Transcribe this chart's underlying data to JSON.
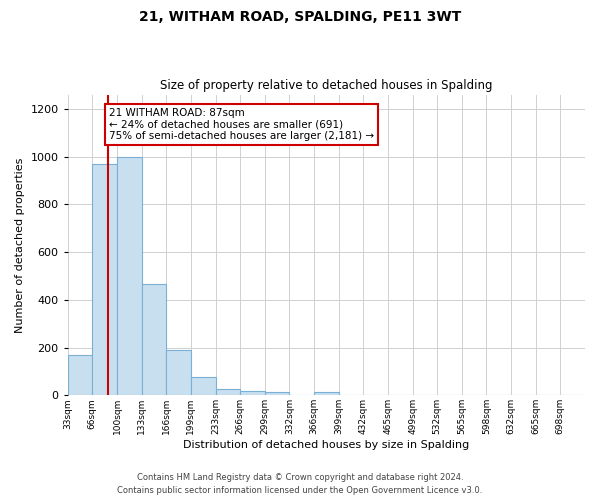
{
  "title": "21, WITHAM ROAD, SPALDING, PE11 3WT",
  "subtitle": "Size of property relative to detached houses in Spalding",
  "xlabel": "Distribution of detached houses by size in Spalding",
  "ylabel": "Number of detached properties",
  "bar_labels": [
    "33sqm",
    "66sqm",
    "100sqm",
    "133sqm",
    "166sqm",
    "199sqm",
    "233sqm",
    "266sqm",
    "299sqm",
    "332sqm",
    "366sqm",
    "399sqm",
    "432sqm",
    "465sqm",
    "499sqm",
    "532sqm",
    "565sqm",
    "598sqm",
    "632sqm",
    "665sqm",
    "698sqm"
  ],
  "bar_values": [
    170,
    970,
    1000,
    465,
    188,
    75,
    25,
    18,
    14,
    0,
    12,
    0,
    0,
    0,
    0,
    0,
    0,
    0,
    0,
    0,
    0
  ],
  "bar_color": "#c8dff0",
  "bar_edge_color": "#7bafd4",
  "property_line_color": "#cc0000",
  "annotation_title": "21 WITHAM ROAD: 87sqm",
  "annotation_line1": "← 24% of detached houses are smaller (691)",
  "annotation_line2": "75% of semi-detached houses are larger (2,181) →",
  "annotation_box_color": "#ffffff",
  "annotation_box_edge_color": "#cc0000",
  "ylim": [
    0,
    1260
  ],
  "yticks": [
    0,
    200,
    400,
    600,
    800,
    1000,
    1200
  ],
  "footnote1": "Contains HM Land Registry data © Crown copyright and database right 2024.",
  "footnote2": "Contains public sector information licensed under the Open Government Licence v3.0.",
  "bg_color": "#ffffff",
  "grid_color": "#d0d0d0"
}
